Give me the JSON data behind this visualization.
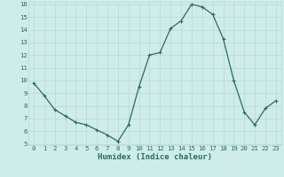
{
  "x": [
    0,
    1,
    2,
    3,
    4,
    5,
    6,
    7,
    8,
    9,
    10,
    11,
    12,
    13,
    14,
    15,
    16,
    17,
    18,
    19,
    20,
    21,
    22,
    23
  ],
  "y": [
    9.8,
    8.8,
    7.7,
    7.2,
    6.7,
    6.5,
    6.1,
    5.7,
    5.2,
    6.5,
    9.5,
    12.0,
    12.2,
    14.1,
    14.7,
    16.0,
    15.8,
    15.2,
    13.3,
    10.0,
    7.5,
    6.5,
    7.8,
    8.4
  ],
  "xlabel": "Humidex (Indice chaleur)",
  "ylim_min": 5,
  "ylim_max": 16,
  "xlim_min": -0.5,
  "xlim_max": 23.5,
  "yticks": [
    5,
    6,
    7,
    8,
    9,
    10,
    11,
    12,
    13,
    14,
    15,
    16
  ],
  "xticks": [
    0,
    1,
    2,
    3,
    4,
    5,
    6,
    7,
    8,
    9,
    10,
    11,
    12,
    13,
    14,
    15,
    16,
    17,
    18,
    19,
    20,
    21,
    22,
    23
  ],
  "xtick_labels": [
    "0",
    "1",
    "2",
    "3",
    "4",
    "5",
    "6",
    "7",
    "8",
    "9",
    "10",
    "11",
    "12",
    "13",
    "14",
    "15",
    "16",
    "17",
    "18",
    "19",
    "20",
    "21",
    "22",
    "23"
  ],
  "line_color": "#2d6b5e",
  "marker": "+",
  "marker_size": 3,
  "marker_edge_width": 0.8,
  "line_width": 0.9,
  "bg_color": "#ceecea",
  "grid_color": "#b8d9d6",
  "xlabel_fontsize": 6.5,
  "tick_fontsize": 5.2
}
